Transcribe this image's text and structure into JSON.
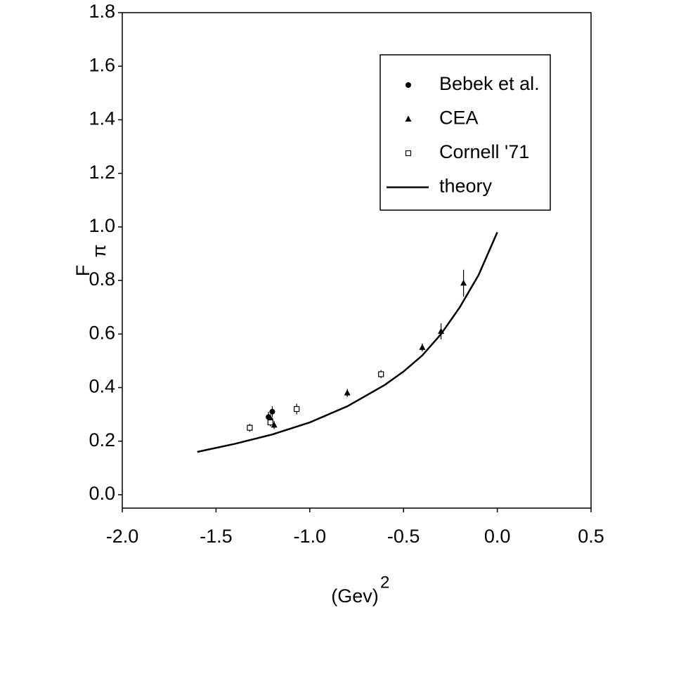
{
  "chart_data": {
    "type": "scatter",
    "xlabel": {
      "text": "(Gev)",
      "superscript": "2"
    },
    "ylabel": {
      "text": "F",
      "subscript": "π"
    },
    "xlim": [
      -2.0,
      0.5
    ],
    "xticks": [
      {
        "value": -2.0,
        "label": "-2.0"
      },
      -1.5,
      {
        "value": -1.0,
        "label": "-1.0"
      },
      -0.5,
      {
        "value": 0.0,
        "label": "0.0"
      },
      0.5
    ],
    "ylim": [
      -0.05,
      1.8
    ],
    "yticks": [
      {
        "value": 0.0,
        "label": "0.0"
      },
      0.2,
      0.4,
      0.6,
      0.8,
      {
        "value": 1.0,
        "label": "1.0"
      },
      1.2,
      1.4,
      1.6,
      1.8
    ],
    "grid": false,
    "legend": "upper right",
    "series": [
      {
        "name": "Bebek et al.",
        "marker": "circle",
        "color": "#000000",
        "x": [
          -1.22,
          -1.21,
          -1.2
        ],
        "values": [
          0.29,
          0.28,
          0.31
        ],
        "errors": [
          0.02,
          0.02,
          0.02
        ]
      },
      {
        "name": "CEA",
        "marker": "triangle",
        "color": "#000000",
        "x": [
          -1.19,
          -0.8,
          -0.4,
          -0.3,
          -0.18
        ],
        "values": [
          0.26,
          0.38,
          0.55,
          0.61,
          0.79
        ],
        "errors": [
          0.015,
          0.015,
          0.015,
          0.03,
          0.05
        ]
      },
      {
        "name": "Cornell '71",
        "marker": "square",
        "color": "#000000",
        "x": [
          -1.32,
          -1.21,
          -1.07,
          -0.62
        ],
        "values": [
          0.25,
          0.27,
          0.32,
          0.45
        ],
        "errors": [
          0.015,
          0.015,
          0.02,
          0.015
        ]
      },
      {
        "name": "theory",
        "marker": "line",
        "color": "#000000",
        "x": [
          -1.6,
          -1.4,
          -1.2,
          -1.0,
          -0.8,
          -0.6,
          -0.5,
          -0.4,
          -0.3,
          -0.2,
          -0.1,
          0.0
        ],
        "values": [
          0.16,
          0.19,
          0.225,
          0.27,
          0.33,
          0.41,
          0.46,
          0.52,
          0.6,
          0.7,
          0.82,
          0.98
        ]
      }
    ]
  }
}
